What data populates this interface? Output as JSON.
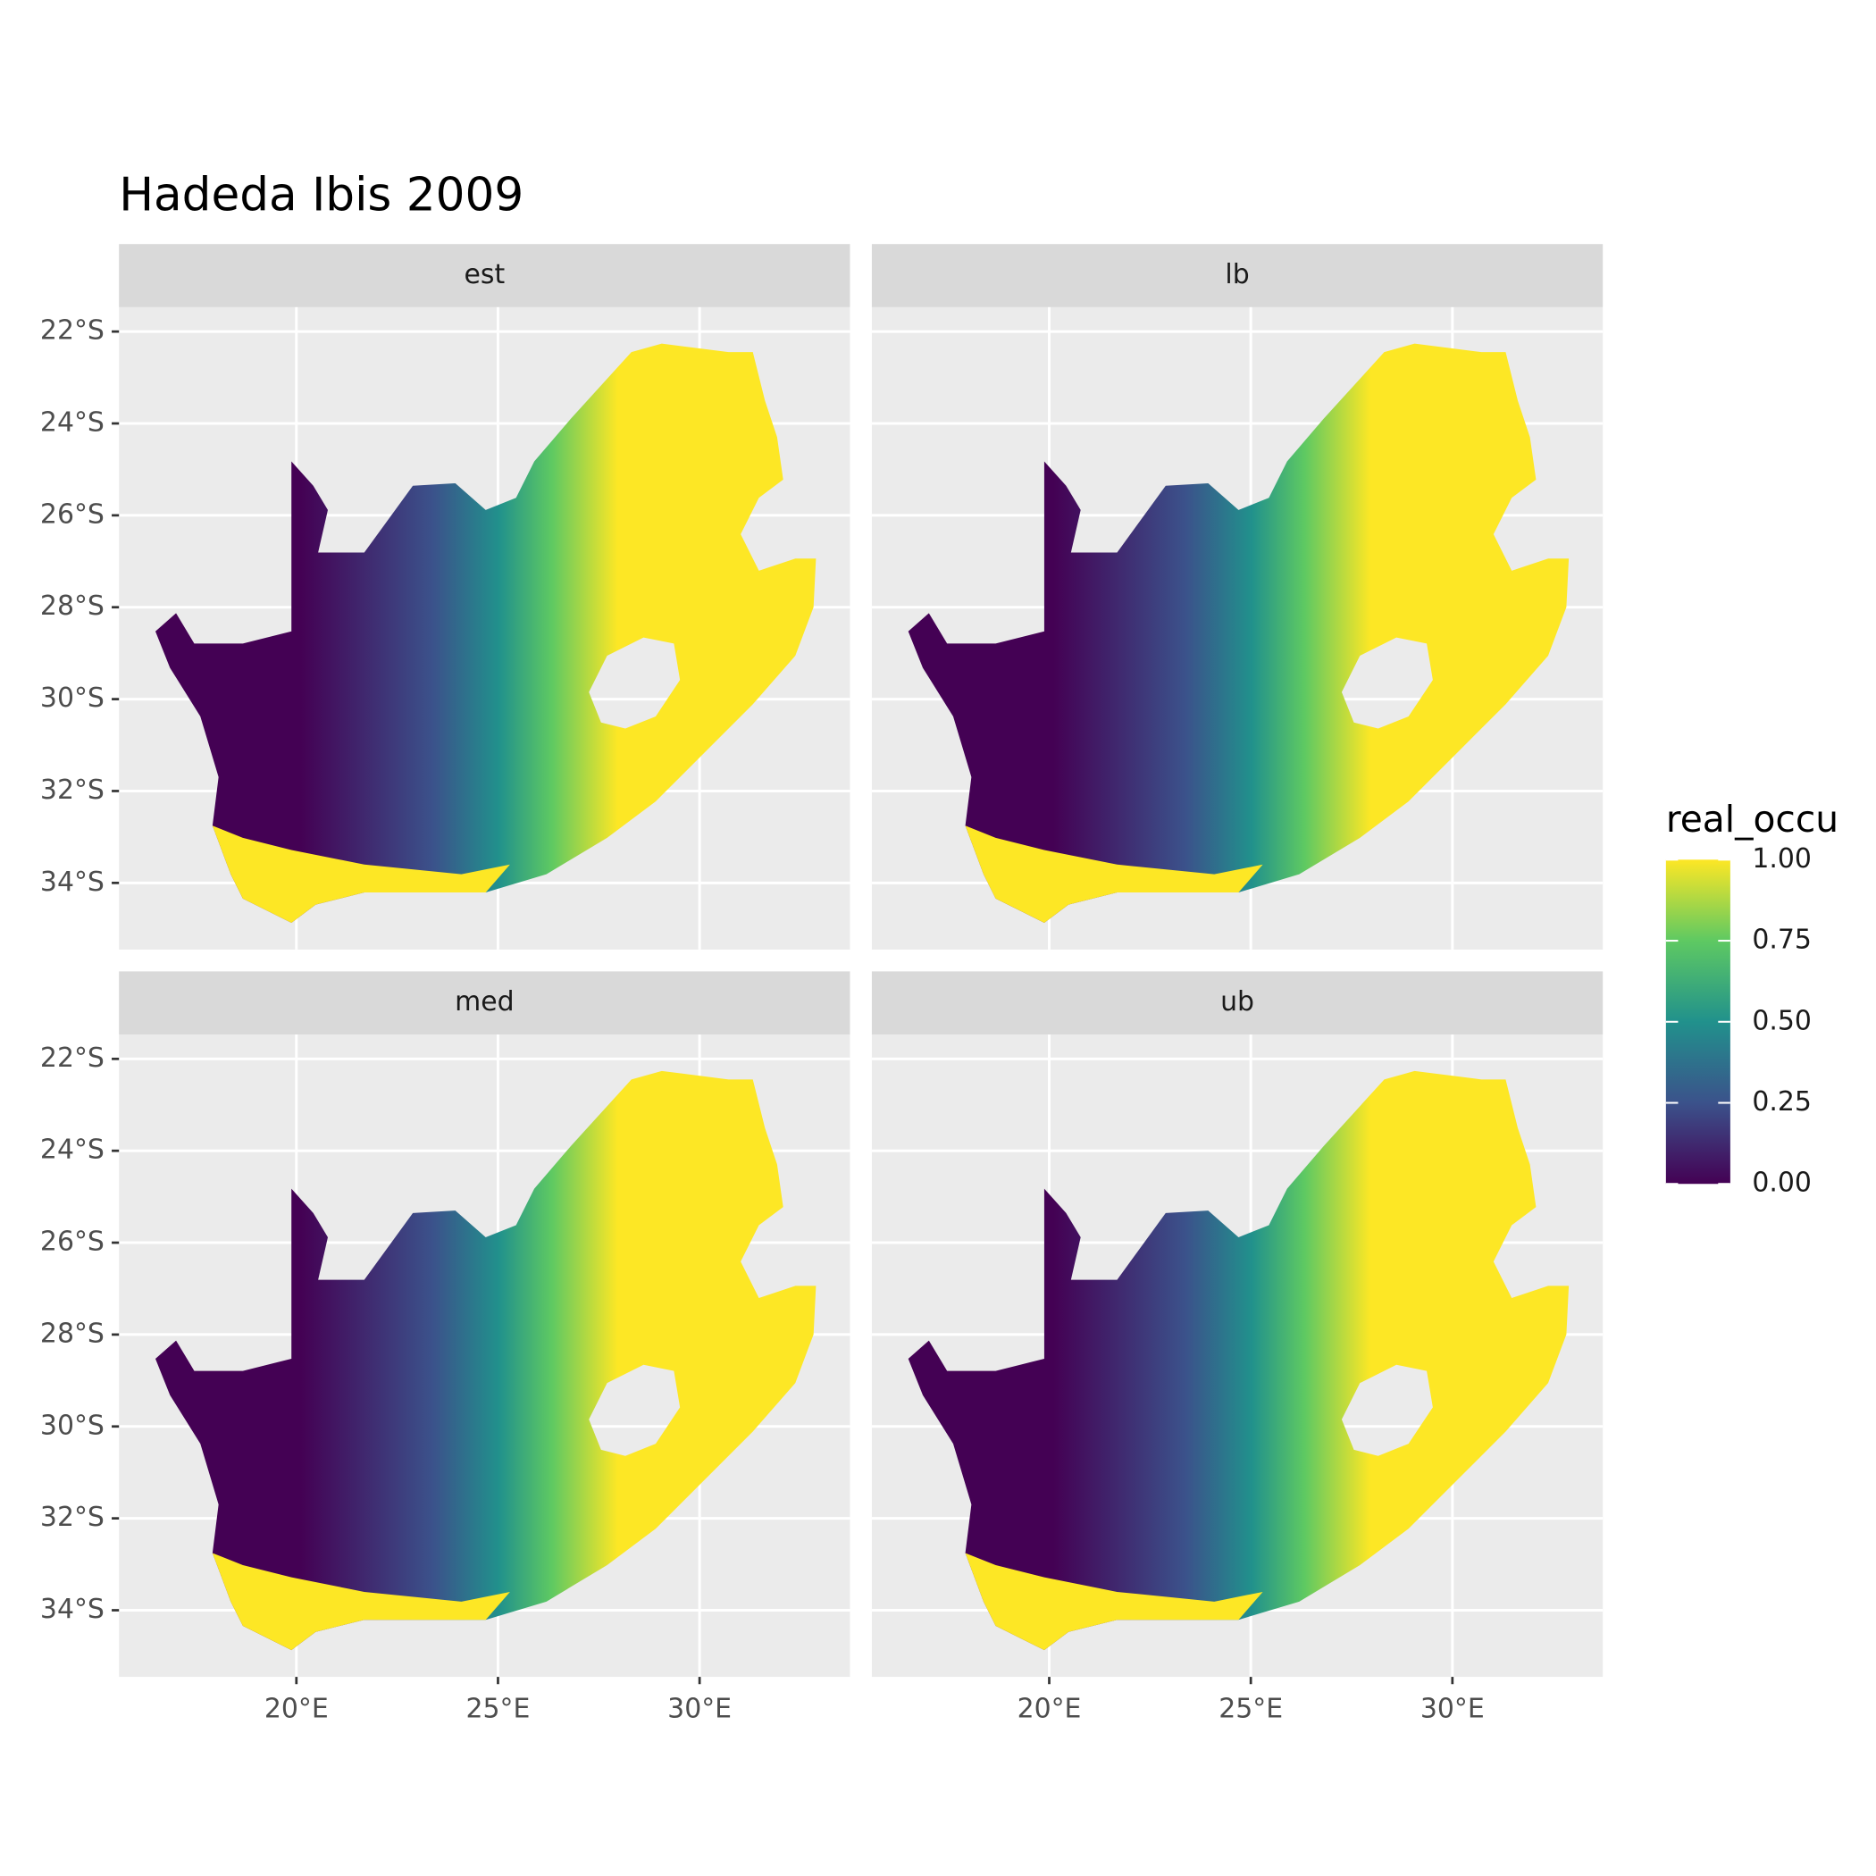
{
  "chart_data": {
    "type": "map",
    "title": "Hadeda Ibis 2009",
    "facets": [
      "est",
      "lb",
      "med",
      "ub"
    ],
    "xlim": [
      15.6,
      33.73
    ],
    "ylim": [
      -35.45,
      -21.47
    ],
    "xticks": [
      {
        "value": 20,
        "label": "20°E"
      },
      {
        "value": 25,
        "label": "25°E"
      },
      {
        "value": 30,
        "label": "30°E"
      }
    ],
    "yticks": [
      {
        "value": -22,
        "label": "22°S"
      },
      {
        "value": -24,
        "label": "24°S"
      },
      {
        "value": -26,
        "label": "26°S"
      },
      {
        "value": -28,
        "label": "28°S"
      },
      {
        "value": -30,
        "label": "30°S"
      },
      {
        "value": -32,
        "label": "32°S"
      },
      {
        "value": -34,
        "label": "34°S"
      }
    ],
    "legend": {
      "title": "real_occu",
      "lim": [
        0,
        1
      ],
      "ticks": [
        {
          "value": 0,
          "label": "0.00"
        },
        {
          "value": 0.25,
          "label": "0.25"
        },
        {
          "value": 0.5,
          "label": "0.50"
        },
        {
          "value": 0.75,
          "label": "0.75"
        },
        {
          "value": 1,
          "label": "1.00"
        }
      ],
      "colors": [
        "#440154",
        "#3b528b",
        "#21918c",
        "#5ec962",
        "#fde725"
      ]
    }
  }
}
